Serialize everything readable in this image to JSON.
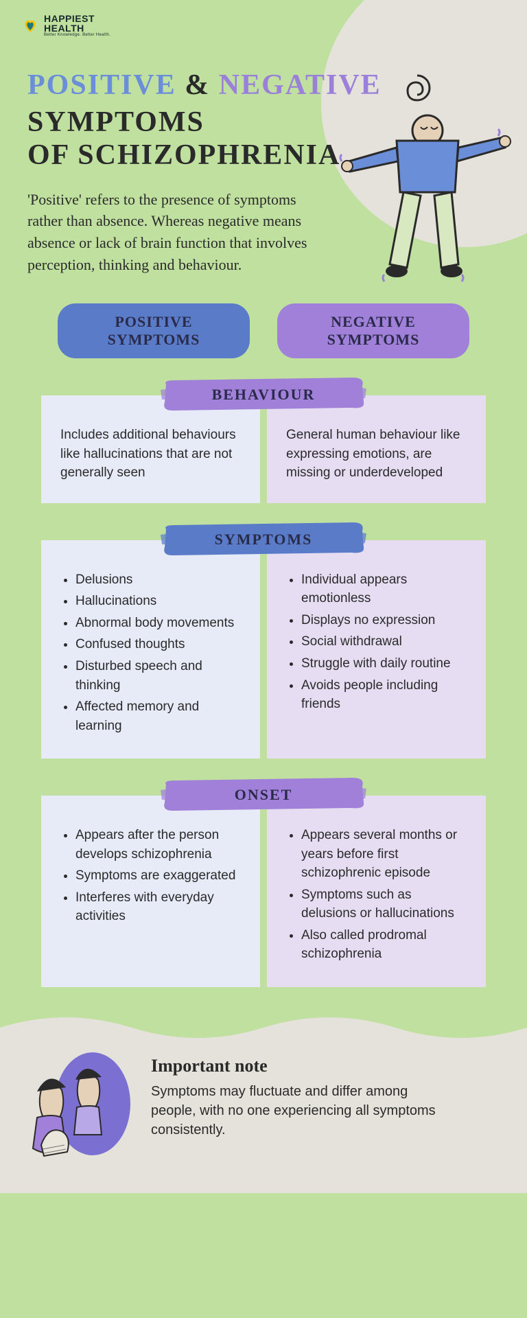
{
  "colors": {
    "page_bg": "#c0e0a0",
    "blob_bg": "#e5e2db",
    "text_dark": "#2a2a2a",
    "positive_col": "#5a7cc8",
    "negative_col": "#a080d8",
    "box_positive_bg": "#e6ebf7",
    "box_negative_bg": "#e6ddf3",
    "title_positive": "#6a8fd8",
    "title_negative": "#9a80d8"
  },
  "fonts": {
    "handwriting_family": "Comic Sans MS",
    "body_family": "Arial",
    "heading_family": "Georgia",
    "title_size_pt": 42,
    "intro_size_pt": 22,
    "pill_size_pt": 22,
    "brush_size_pt": 22,
    "body_size_pt": 19,
    "note_title_size_pt": 26,
    "note_body_size_pt": 20
  },
  "logo": {
    "line1": "HAPPIEST",
    "line2": "HEALTH",
    "tagline": "Better Knowledge. Better Health."
  },
  "title": {
    "positive": "POSITIVE",
    "amp": "&",
    "negative": "NEGATIVE",
    "line2": "SYMPTOMS\nOF SCHIZOPHRENIA"
  },
  "intro": "'Positive' refers to the presence of symptoms rather than absence. Whereas negative means absence or lack of brain function that involves perception, thinking and behaviour.",
  "columns": {
    "positive_label": "POSITIVE SYMPTOMS",
    "negative_label": "NEGATIVE SYMPTOMS"
  },
  "sections": [
    {
      "heading": "BEHAVIOUR",
      "brush_color": "purple",
      "positive_text": "Includes additional behaviours like hallucinations that are not generally seen",
      "negative_text": "General human behaviour like expressing emotions, are missing or underdeveloped",
      "list": false
    },
    {
      "heading": "SYMPTOMS",
      "brush_color": "blue",
      "positive_items": [
        "Delusions",
        "Hallucinations",
        "Abnormal body movements",
        "Confused thoughts",
        "Disturbed speech and thinking",
        "Affected memory and learning"
      ],
      "negative_items": [
        "Individual appears emotionless",
        "Displays no expression",
        "Social withdrawal",
        "Struggle with daily routine",
        "Avoids people including friends"
      ],
      "list": true
    },
    {
      "heading": "ONSET",
      "brush_color": "purple",
      "positive_items": [
        "Appears after the person develops schizophrenia",
        "Symptoms are exaggerated",
        "Interferes with everyday activities"
      ],
      "negative_items": [
        "Appears several months or years before first schizophrenic episode",
        "Symptoms such as delusions or hallucinations",
        "Also called prodromal schizophrenia"
      ],
      "list": true
    }
  ],
  "note": {
    "title": "Important note",
    "body": "Symptoms may fluctuate and differ among people, with no one experiencing all symptoms consistently."
  }
}
